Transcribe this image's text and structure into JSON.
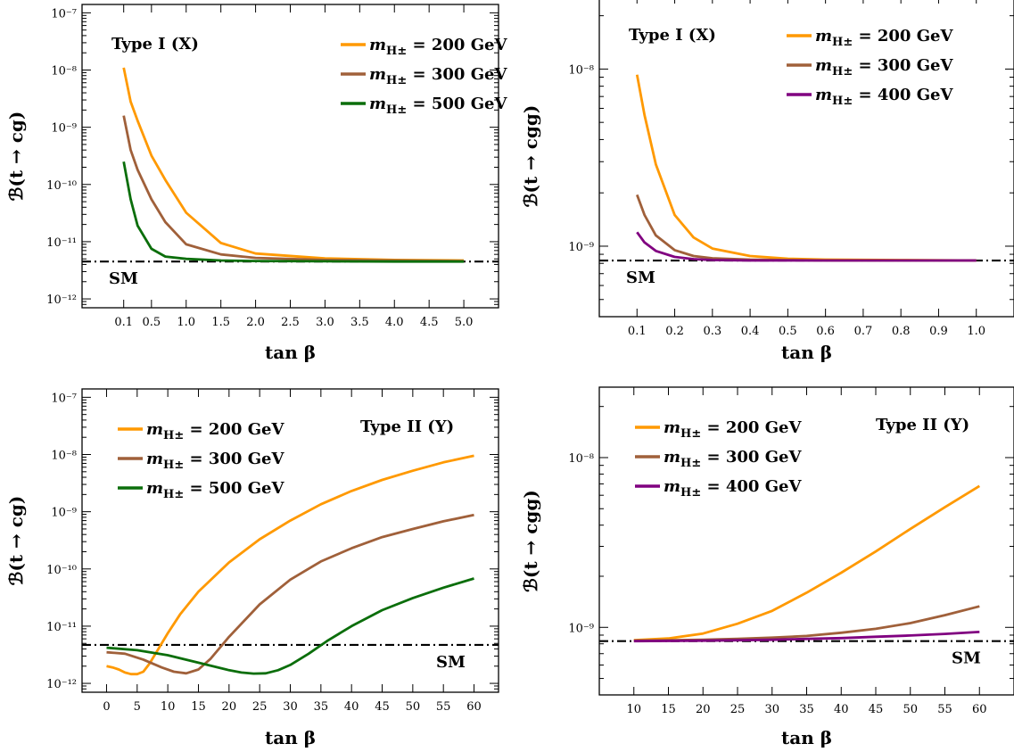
{
  "colors": {
    "orange": "#ff9900",
    "brown": "#a0603a",
    "green": "#0b6e0b",
    "purple": "#800080",
    "sm_line": "#000000"
  },
  "chart_data": [
    {
      "type": "line",
      "panel": "top-left",
      "model_label": "Type I (X)",
      "xlabel": "tan β",
      "ylabel": "ℬ(t → cg)",
      "xlim": [
        -0.5,
        5.5
      ],
      "ylim": [
        7e-13,
        1.4e-07
      ],
      "yscale": "log",
      "xticks": [
        0.1,
        0.5,
        1.0,
        1.5,
        2.0,
        2.5,
        3.0,
        3.5,
        4.0,
        4.5,
        5.0
      ],
      "xtick_labels": [
        "0.1",
        "0.5",
        "1.0",
        "1.5",
        "2.0",
        "2.5",
        "3.0",
        "3.5",
        "4.0",
        "4.5",
        "5.0"
      ],
      "yticks": [
        1e-12,
        1e-11,
        1e-10,
        1e-09,
        1e-08,
        1e-07
      ],
      "ytick_labels": [
        "10⁻¹²",
        "10⁻¹¹",
        "10⁻¹⁰",
        "10⁻⁹",
        "10⁻⁸",
        "10⁻⁷"
      ],
      "legend_position": "top-right",
      "sm": {
        "label": "SM",
        "value": 4.5e-12,
        "label_position": "bottom-left"
      },
      "series": [
        {
          "name": "m_H± = 200 GeV",
          "color_key": "orange",
          "x": [
            0.1,
            0.2,
            0.3,
            0.5,
            0.7,
            1.0,
            1.5,
            2.0,
            3.0,
            4.0,
            5.0
          ],
          "y": [
            1.1e-08,
            2.8e-09,
            1.3e-09,
            3.2e-10,
            1.2e-10,
            3.2e-11,
            9.5e-12,
            6.2e-12,
            5.1e-12,
            4.8e-12,
            4.7e-12
          ]
        },
        {
          "name": "m_H± = 300 GeV",
          "color_key": "brown",
          "x": [
            0.1,
            0.2,
            0.3,
            0.5,
            0.7,
            1.0,
            1.5,
            2.0,
            3.0,
            4.0,
            5.0
          ],
          "y": [
            1.6e-09,
            4e-10,
            1.8e-10,
            5.5e-11,
            2.2e-11,
            9e-12,
            6e-12,
            5.2e-12,
            4.8e-12,
            4.7e-12,
            4.6e-12
          ]
        },
        {
          "name": "m_H± = 500 GeV",
          "color_key": "green",
          "x": [
            0.1,
            0.2,
            0.3,
            0.5,
            0.7,
            1.0,
            1.5,
            2.0,
            3.0,
            4.0,
            5.0
          ],
          "y": [
            2.5e-10,
            5.5e-11,
            1.9e-11,
            7.5e-12,
            5.5e-12,
            5e-12,
            4.7e-12,
            4.6e-12,
            4.55e-12,
            4.5e-12,
            4.5e-12
          ]
        }
      ]
    },
    {
      "type": "line",
      "panel": "top-right",
      "model_label": "Type I (X)",
      "xlabel": "tan β",
      "ylabel": "ℬ(t → cgg)",
      "xlim": [
        0.0,
        1.1
      ],
      "ylim": [
        4e-10,
        2.6e-08
      ],
      "yscale": "log",
      "xticks": [
        0.1,
        0.2,
        0.3,
        0.4,
        0.5,
        0.6,
        0.7,
        0.8,
        0.9,
        1.0
      ],
      "xtick_labels": [
        "0.1",
        "0.2",
        "0.3",
        "0.4",
        "0.5",
        "0.6",
        "0.7",
        "0.8",
        "0.9",
        "1.0"
      ],
      "yticks": [
        1e-09,
        1e-08
      ],
      "ytick_labels": [
        "10⁻⁹",
        "10⁻⁸"
      ],
      "legend_position": "top-right",
      "sm": {
        "label": "SM",
        "value": 8.3e-10,
        "label_position": "bottom-left"
      },
      "series": [
        {
          "name": "m_H± = 200 GeV",
          "color_key": "orange",
          "x": [
            0.1,
            0.12,
            0.15,
            0.2,
            0.25,
            0.3,
            0.4,
            0.5,
            0.6,
            0.8,
            1.0
          ],
          "y": [
            9.3e-09,
            5.5e-09,
            2.9e-09,
            1.5e-09,
            1.12e-09,
            9.7e-10,
            8.8e-10,
            8.5e-10,
            8.4e-10,
            8.35e-10,
            8.3e-10
          ]
        },
        {
          "name": "m_H± = 300 GeV",
          "color_key": "brown",
          "x": [
            0.1,
            0.12,
            0.15,
            0.2,
            0.25,
            0.3,
            0.4,
            0.5,
            0.6,
            0.8,
            1.0
          ],
          "y": [
            1.95e-09,
            1.5e-09,
            1.15e-09,
            9.5e-10,
            8.8e-10,
            8.55e-10,
            8.4e-10,
            8.35e-10,
            8.3e-10,
            8.3e-10,
            8.3e-10
          ]
        },
        {
          "name": "m_H± = 400 GeV",
          "color_key": "purple",
          "x": [
            0.1,
            0.12,
            0.15,
            0.2,
            0.25,
            0.3,
            0.4,
            0.5,
            0.6,
            0.8,
            1.0
          ],
          "y": [
            1.2e-09,
            1.05e-09,
            9.4e-10,
            8.7e-10,
            8.45e-10,
            8.35e-10,
            8.3e-10,
            8.3e-10,
            8.3e-10,
            8.3e-10,
            8.3e-10
          ]
        }
      ]
    },
    {
      "type": "line",
      "panel": "bottom-left",
      "model_label": "Type II (Y)",
      "xlabel": "tan β",
      "ylabel": "ℬ(t → cg)",
      "xlim": [
        -4,
        64
      ],
      "ylim": [
        7e-13,
        1.4e-07
      ],
      "yscale": "log",
      "xticks": [
        0,
        5,
        10,
        15,
        20,
        25,
        30,
        35,
        40,
        45,
        50,
        55,
        60
      ],
      "xtick_labels": [
        "0",
        "5",
        "10",
        "15",
        "20",
        "25",
        "30",
        "35",
        "40",
        "45",
        "50",
        "55",
        "60"
      ],
      "yticks": [
        1e-12,
        1e-11,
        1e-10,
        1e-09,
        1e-08,
        1e-07
      ],
      "ytick_labels": [
        "10⁻¹²",
        "10⁻¹¹",
        "10⁻¹⁰",
        "10⁻⁹",
        "10⁻⁸",
        "10⁻⁷"
      ],
      "legend_position": "top-left",
      "sm": {
        "label": "SM",
        "value": 4.7e-12,
        "label_position": "bottom-right"
      },
      "series": [
        {
          "name": "m_H± = 200 GeV",
          "color_key": "orange",
          "x": [
            0,
            1,
            2,
            3,
            4,
            5,
            6,
            7,
            8,
            10,
            12,
            15,
            20,
            25,
            30,
            35,
            40,
            45,
            50,
            55,
            60
          ],
          "y": [
            2e-12,
            1.9e-12,
            1.75e-12,
            1.55e-12,
            1.45e-12,
            1.45e-12,
            1.6e-12,
            2.2e-12,
            3.3e-12,
            7.5e-12,
            1.6e-11,
            4e-11,
            1.3e-10,
            3.3e-10,
            7e-10,
            1.35e-09,
            2.3e-09,
            3.6e-09,
            5.2e-09,
            7.3e-09,
            9.5e-09
          ]
        },
        {
          "name": "m_H± = 300 GeV",
          "color_key": "brown",
          "x": [
            0,
            3,
            6,
            9,
            11,
            13,
            15,
            17,
            20,
            25,
            30,
            35,
            40,
            45,
            50,
            55,
            60
          ],
          "y": [
            3.5e-12,
            3.3e-12,
            2.6e-12,
            1.9e-12,
            1.6e-12,
            1.5e-12,
            1.75e-12,
            2.7e-12,
            6.5e-12,
            2.4e-11,
            6.5e-11,
            1.35e-10,
            2.3e-10,
            3.6e-10,
            5e-10,
            6.8e-10,
            8.8e-10
          ]
        },
        {
          "name": "m_H± = 500 GeV",
          "color_key": "green",
          "x": [
            0,
            5,
            10,
            15,
            20,
            22,
            24,
            26,
            28,
            30,
            33,
            36,
            40,
            45,
            50,
            55,
            60
          ],
          "y": [
            4.2e-12,
            3.8e-12,
            3.1e-12,
            2.3e-12,
            1.7e-12,
            1.55e-12,
            1.48e-12,
            1.5e-12,
            1.7e-12,
            2.1e-12,
            3.3e-12,
            5.5e-12,
            1e-11,
            1.9e-11,
            3.1e-11,
            4.7e-11,
            6.8e-11
          ]
        }
      ]
    },
    {
      "type": "line",
      "panel": "bottom-right",
      "model_label": "Type II (Y)",
      "xlabel": "tan β",
      "ylabel": "ℬ(t → cgg)",
      "xlim": [
        5,
        65
      ],
      "ylim": [
        4e-10,
        2.6e-08
      ],
      "yscale": "log",
      "xticks": [
        10,
        15,
        20,
        25,
        30,
        35,
        40,
        45,
        50,
        55,
        60
      ],
      "xtick_labels": [
        "10",
        "15",
        "20",
        "25",
        "30",
        "35",
        "40",
        "45",
        "50",
        "55",
        "60"
      ],
      "yticks": [
        1e-09,
        1e-08
      ],
      "ytick_labels": [
        "10⁻⁹",
        "10⁻⁸"
      ],
      "legend_position": "top-left",
      "sm": {
        "label": "SM",
        "value": 8.3e-10,
        "label_position": "bottom-right"
      },
      "series": [
        {
          "name": "m_H± = 200 GeV",
          "color_key": "orange",
          "x": [
            10,
            15,
            20,
            25,
            30,
            35,
            40,
            45,
            50,
            55,
            60
          ],
          "y": [
            8.4e-10,
            8.6e-10,
            9.2e-10,
            1.05e-09,
            1.25e-09,
            1.6e-09,
            2.1e-09,
            2.8e-09,
            3.8e-09,
            5.1e-09,
            6.8e-09
          ]
        },
        {
          "name": "m_H± = 300 GeV",
          "color_key": "brown",
          "x": [
            10,
            15,
            20,
            25,
            30,
            35,
            40,
            45,
            50,
            55,
            60
          ],
          "y": [
            8.35e-10,
            8.4e-10,
            8.45e-10,
            8.55e-10,
            8.7e-10,
            8.9e-10,
            9.3e-10,
            9.8e-10,
            1.06e-09,
            1.18e-09,
            1.33e-09
          ]
        },
        {
          "name": "m_H± = 400 GeV",
          "color_key": "purple",
          "x": [
            10,
            15,
            20,
            25,
            30,
            35,
            40,
            45,
            50,
            55,
            60
          ],
          "y": [
            8.3e-10,
            8.32e-10,
            8.35e-10,
            8.4e-10,
            8.45e-10,
            8.55e-10,
            8.65e-10,
            8.8e-10,
            8.95e-10,
            9.15e-10,
            9.4e-10
          ]
        }
      ]
    }
  ]
}
